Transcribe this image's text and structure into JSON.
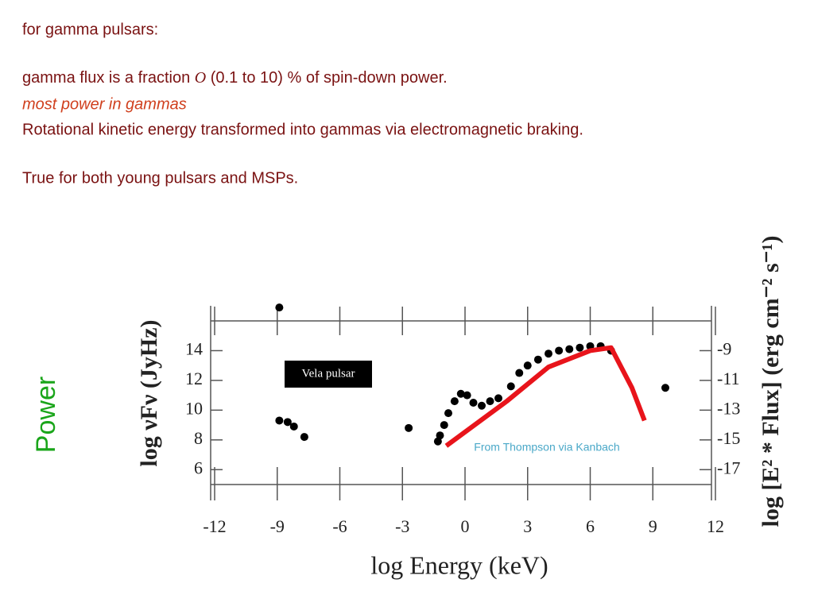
{
  "slide": {
    "lines": [
      "for gamma pulsars:",
      "gamma flux is a fraction ",
      "O",
      " (0.1 to 10) % of spin-down power.",
      "most power in gammas",
      "Rotational kinetic energy transformed into gammas via electromagnetic braking.",
      "True for both young pulsars and MSPs."
    ],
    "side_label": "Power"
  },
  "chart_data": {
    "type": "scatter",
    "xlabel": "log Energy (keV)",
    "ylabel": "log νFν (JyHz)",
    "y2label": "log [E² * Flux] (erg cm⁻² s⁻¹)",
    "annotations": [
      "Vela pulsar",
      "From Thompson via Kanbach"
    ],
    "xlim": [
      -12,
      12
    ],
    "xticks": [
      -12,
      -9,
      -6,
      -3,
      0,
      3,
      6,
      9,
      12
    ],
    "ylim": [
      5,
      16
    ],
    "yticks": [
      6,
      8,
      10,
      12,
      14
    ],
    "y2lim": [
      -18,
      -7
    ],
    "y2ticks": [
      -17,
      -15,
      -13,
      -11,
      -9
    ],
    "series": [
      {
        "color": "#000000",
        "x": [
          -8.9,
          -8.9,
          -8.5,
          -8.2,
          -7.7,
          -2.7,
          -1.3,
          -1.2,
          -1.0,
          -0.8,
          -0.5,
          -0.2,
          0.1,
          0.4,
          0.8,
          1.2,
          1.6,
          2.2,
          2.6,
          3.0,
          3.5,
          4.0,
          4.5,
          5.0,
          5.5,
          6.0,
          6.5,
          7.0,
          9.6
        ],
        "values": [
          16.9,
          9.3,
          9.2,
          8.9,
          8.2,
          8.8,
          7.9,
          8.3,
          9.0,
          9.8,
          10.6,
          11.1,
          11.0,
          10.5,
          10.3,
          10.6,
          10.8,
          11.6,
          12.5,
          13.0,
          13.4,
          13.8,
          14.0,
          14.1,
          14.2,
          14.3,
          14.3,
          14.0,
          11.5
        ]
      },
      {
        "color": "#e8141b",
        "x": [
          -0.9,
          2.0,
          4.0,
          6.0,
          7.0,
          8.0,
          8.6
        ],
        "values": [
          7.6,
          10.6,
          12.9,
          14.0,
          14.2,
          11.5,
          9.3
        ]
      }
    ]
  }
}
